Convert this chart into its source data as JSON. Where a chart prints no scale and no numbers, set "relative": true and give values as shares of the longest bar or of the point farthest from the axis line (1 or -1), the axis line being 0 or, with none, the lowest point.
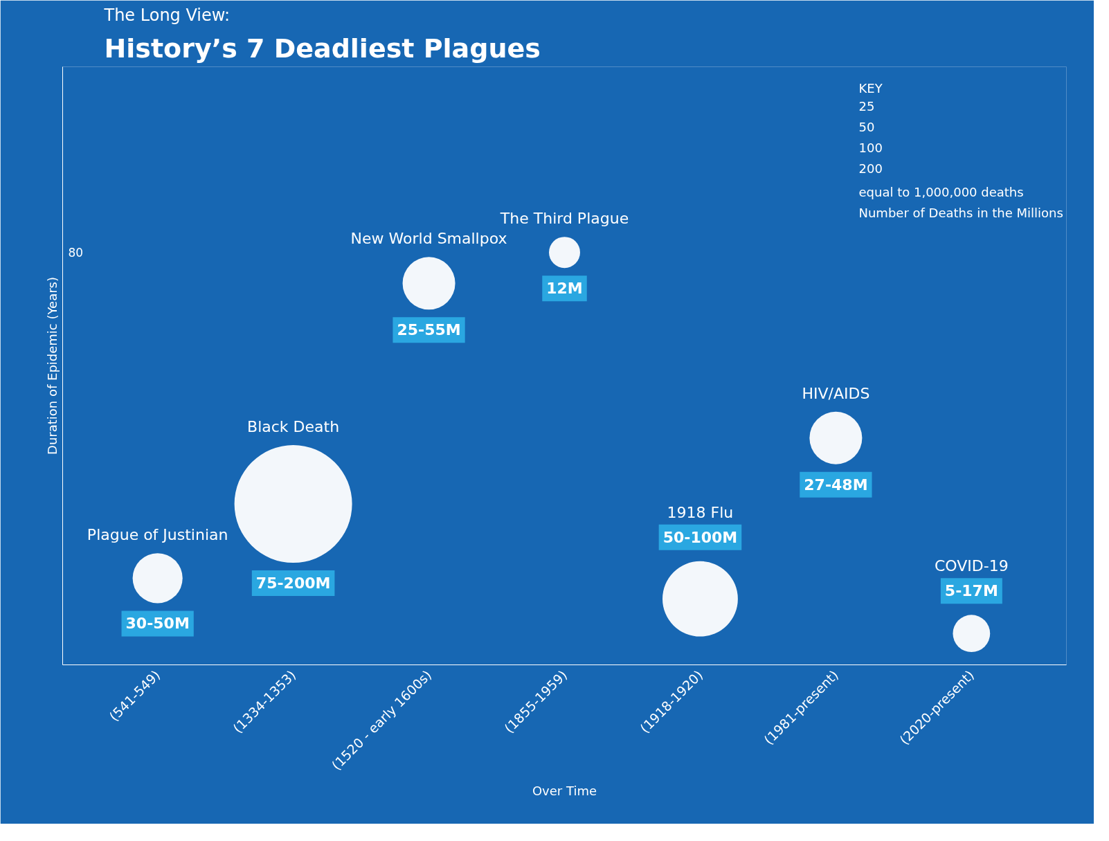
{
  "chart_data": {
    "type": "bubble",
    "title": "History’s 7 Deadliest Plagues",
    "subtitle": "The Long View:",
    "xlabel": "Over Time",
    "ylabel": "Duration of Epidemic (Years)",
    "categories": [
      "(541-549)",
      "(1334-1353)",
      "(1520 - early 1600s)",
      "(1855-1959)",
      "(1918-1920)",
      "(1981-present)",
      "(2020-present)"
    ],
    "relative": true,
    "series": [
      {
        "color": "#ffffff",
        "values": [
          0.21,
          0.39,
          0.925,
          1,
          0.16,
          0.55,
          0.076
        ],
        "sizes": [
          0.18,
          1,
          0.2,
          0.07,
          0.41,
          0.2,
          0.1
        ]
      }
    ],
    "annotations": [
      "80",
      "KEY",
      "25",
      "50",
      "100",
      "200",
      "equal to 1,000,000 deaths",
      "Number of Deaths in the Millions",
      "Plague of Justinian",
      "30-50M",
      "Black Death",
      "75-200M",
      "New World Smallpox",
      "25-55M",
      "The Third Plague",
      "12M",
      "1918 Flu",
      "50-100M",
      "HIV/AIDS",
      "27-48M",
      "COVID-19",
      "5-17M"
    ]
  }
}
